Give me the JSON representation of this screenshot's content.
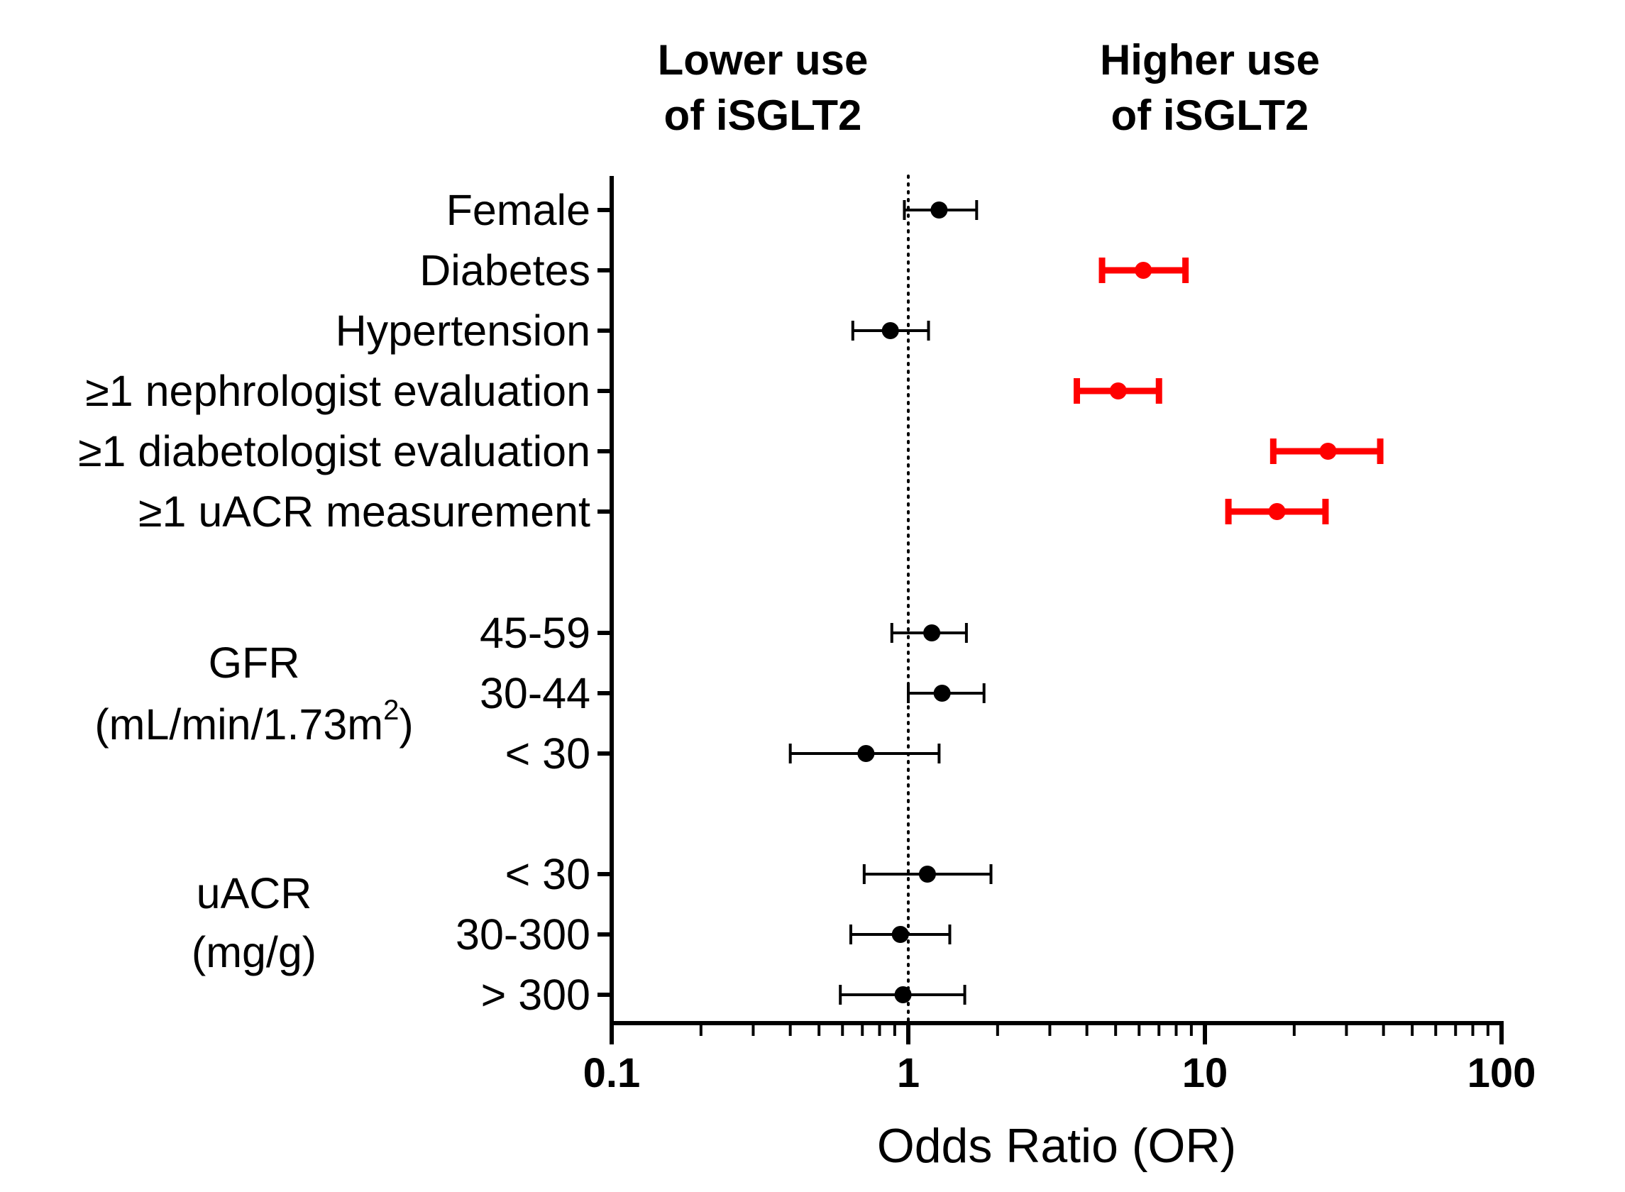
{
  "chart_data": {
    "type": "forest",
    "xlabel": "Odds Ratio (OR)",
    "x_scale": "log",
    "xlim": [
      0.1,
      100
    ],
    "x_ticks": [
      {
        "value": 0.1,
        "label": "0.1"
      },
      {
        "value": 1,
        "label": "1"
      },
      {
        "value": 10,
        "label": "10"
      },
      {
        "value": 100,
        "label": "100"
      }
    ],
    "reference_line": 1,
    "direction_labels": {
      "lower": {
        "line1": "Lower use",
        "line2": "of iSGLT2"
      },
      "higher": {
        "line1": "Higher use",
        "line2": "of iSGLT2"
      }
    },
    "group_labels": [
      {
        "id": "gfr",
        "line1": "GFR",
        "line2_main": "(mL/min/1.73m",
        "line2_sup": "2",
        "line2_end": ")"
      },
      {
        "id": "uacr",
        "line1": "uACR",
        "line2_main": "(mg/g)",
        "line2_sup": "",
        "line2_end": ""
      }
    ],
    "colors": {
      "significant": "#ff0000",
      "nonsignificant": "#000000"
    },
    "rows": [
      {
        "label": "Female",
        "or": 1.27,
        "lower": 0.97,
        "upper": 1.7,
        "significant": false
      },
      {
        "label": "Diabetes",
        "or": 6.2,
        "lower": 4.5,
        "upper": 8.6,
        "significant": true
      },
      {
        "label": "Hypertension",
        "or": 0.87,
        "lower": 0.65,
        "upper": 1.17,
        "significant": false
      },
      {
        "label": "≥1 nephrologist evaluation",
        "or": 5.1,
        "lower": 3.7,
        "upper": 7.0,
        "significant": true
      },
      {
        "label": "≥1 diabetologist evaluation",
        "or": 26,
        "lower": 17,
        "upper": 39,
        "significant": true
      },
      {
        "label": "≥1 uACR measurement",
        "or": 17.5,
        "lower": 12,
        "upper": 25.5,
        "significant": true
      },
      {
        "label": "45-59",
        "group": "gfr",
        "or": 1.2,
        "lower": 0.88,
        "upper": 1.57,
        "significant": false
      },
      {
        "label": "30-44",
        "group": "gfr",
        "or": 1.3,
        "lower": 1.0,
        "upper": 1.8,
        "significant": false
      },
      {
        "label": "< 30",
        "group": "gfr",
        "or": 0.72,
        "lower": 0.4,
        "upper": 1.27,
        "significant": false
      },
      {
        "label": "< 30",
        "group": "uacr",
        "or": 1.16,
        "lower": 0.71,
        "upper": 1.9,
        "significant": false
      },
      {
        "label": "30-300",
        "group": "uacr",
        "or": 0.94,
        "lower": 0.64,
        "upper": 1.38,
        "significant": false
      },
      {
        "label": "> 300",
        "group": "uacr",
        "or": 0.96,
        "lower": 0.59,
        "upper": 1.55,
        "significant": false
      }
    ]
  }
}
